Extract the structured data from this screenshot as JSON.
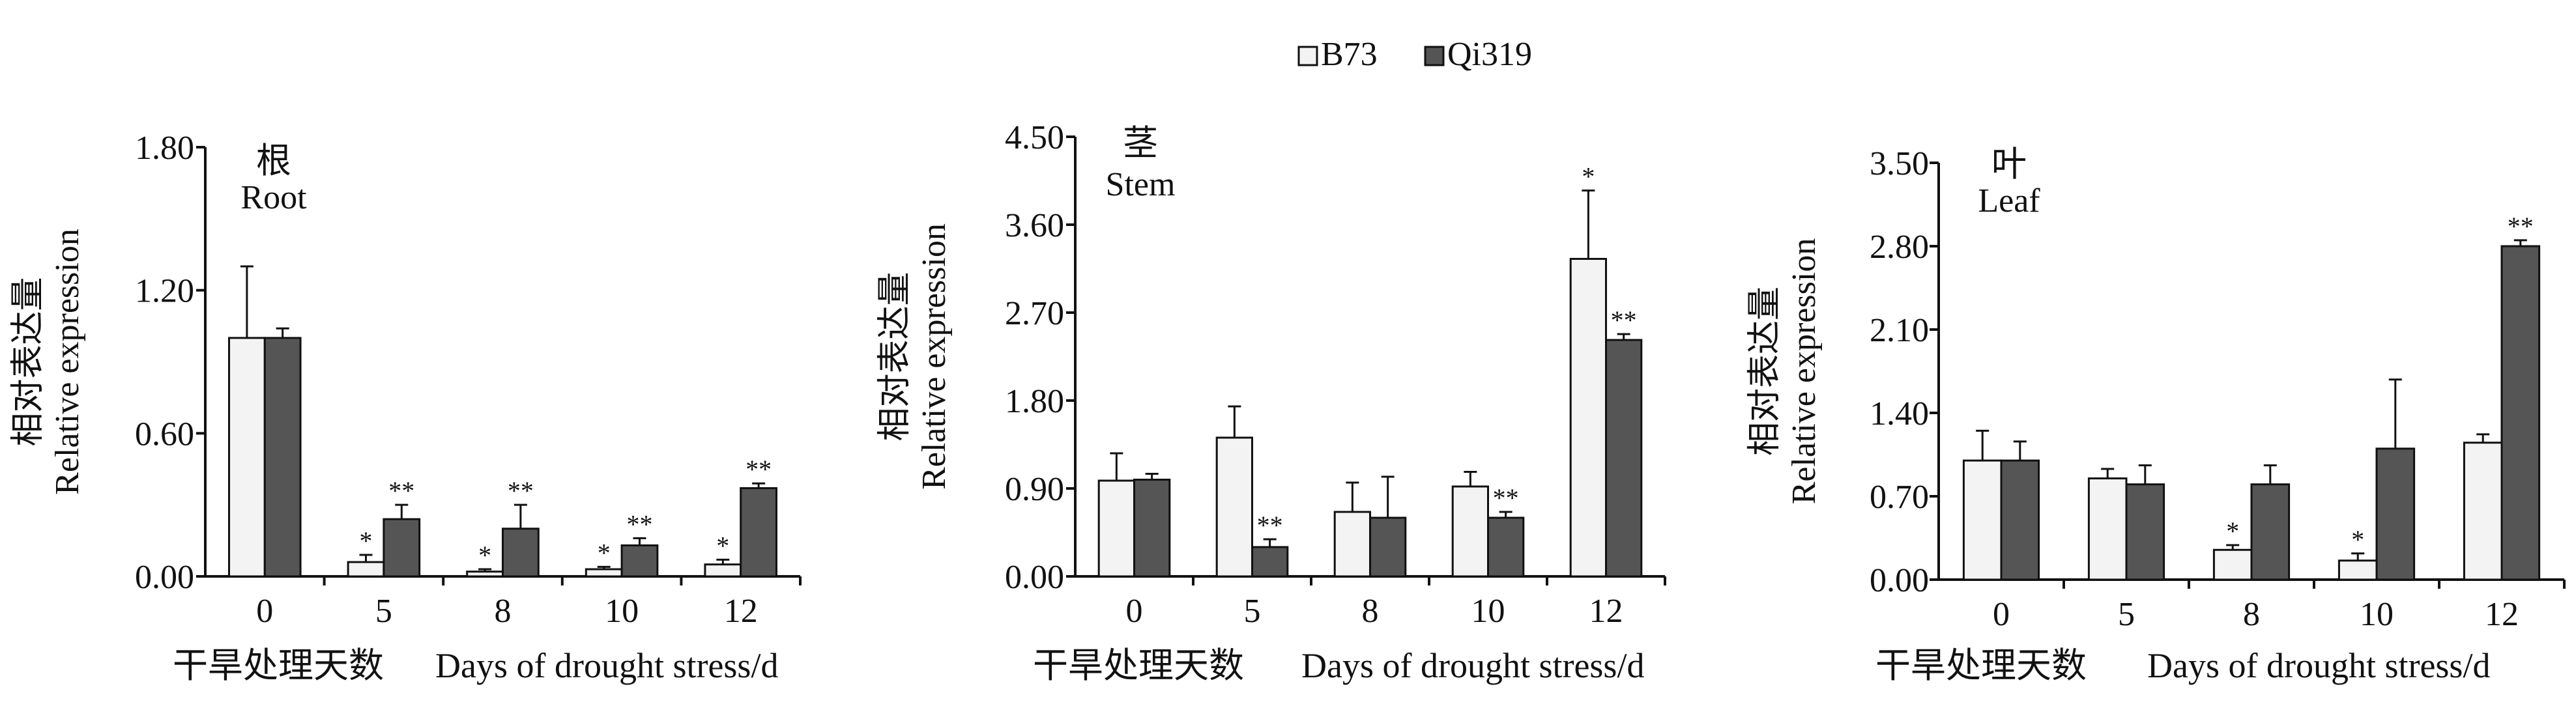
{
  "legend": {
    "items": [
      {
        "label": "B73",
        "color": "#f3f3f3"
      },
      {
        "label": "Qi319",
        "color": "#555555"
      }
    ]
  },
  "colors": {
    "b73": "#f3f3f3",
    "qi319": "#555555",
    "axis": "#111111"
  },
  "chart_data": [
    {
      "type": "bar",
      "title_cn": "根",
      "title_en": "Root",
      "ylabel_cn": "相对表达量",
      "ylabel_en": "Relative expression",
      "xlabel_cn": "干旱处理天数",
      "xlabel_en": "Days of drought stress/d",
      "categories": [
        "0",
        "5",
        "8",
        "10",
        "12"
      ],
      "ylim": [
        0,
        1.8
      ],
      "yticks": [
        "0.00",
        "0.60",
        "1.20",
        "1.80"
      ],
      "series": [
        {
          "name": "B73",
          "values": [
            1.0,
            0.06,
            0.02,
            0.03,
            0.05
          ],
          "errors": [
            0.3,
            0.03,
            0.01,
            0.01,
            0.02
          ],
          "sig": [
            "",
            "*",
            "*",
            "*",
            "*"
          ]
        },
        {
          "name": "Qi319",
          "values": [
            1.0,
            0.24,
            0.2,
            0.13,
            0.37
          ],
          "errors": [
            0.04,
            0.06,
            0.1,
            0.03,
            0.02
          ],
          "sig": [
            "",
            "**",
            "**",
            "**",
            "**"
          ]
        }
      ]
    },
    {
      "type": "bar",
      "title_cn": "茎",
      "title_en": "Stem",
      "ylabel_cn": "相对表达量",
      "ylabel_en": "Relative expression",
      "xlabel_cn": "干旱处理天数",
      "xlabel_en": "Days of drought stress/d",
      "categories": [
        "0",
        "5",
        "8",
        "10",
        "12"
      ],
      "ylim": [
        0,
        4.5
      ],
      "yticks": [
        "0.00",
        "0.90",
        "1.80",
        "2.70",
        "3.60",
        "4.50"
      ],
      "series": [
        {
          "name": "B73",
          "values": [
            0.98,
            1.42,
            0.66,
            0.92,
            3.25
          ],
          "errors": [
            0.28,
            0.32,
            0.3,
            0.15,
            0.7
          ],
          "sig": [
            "",
            "",
            "",
            "",
            "*"
          ]
        },
        {
          "name": "Qi319",
          "values": [
            0.99,
            0.3,
            0.6,
            0.6,
            2.42
          ],
          "errors": [
            0.06,
            0.08,
            0.42,
            0.06,
            0.06
          ],
          "sig": [
            "",
            "**",
            "",
            "**",
            "**"
          ]
        }
      ]
    },
    {
      "type": "bar",
      "title_cn": "叶",
      "title_en": "Leaf",
      "ylabel_cn": "相对表达量",
      "ylabel_en": "Relative expression",
      "xlabel_cn": "干旱处理天数",
      "xlabel_en": "Days of drought stress/d",
      "categories": [
        "0",
        "5",
        "8",
        "10",
        "12"
      ],
      "ylim": [
        0,
        3.5
      ],
      "yticks": [
        "0.00",
        "0.70",
        "1.40",
        "2.10",
        "2.80",
        "3.50"
      ],
      "series": [
        {
          "name": "B73",
          "values": [
            1.0,
            0.85,
            0.25,
            0.16,
            1.15
          ],
          "errors": [
            0.25,
            0.08,
            0.04,
            0.06,
            0.07
          ],
          "sig": [
            "",
            "",
            "*",
            "*",
            ""
          ]
        },
        {
          "name": "Qi319",
          "values": [
            1.0,
            0.8,
            0.8,
            1.1,
            2.8
          ],
          "errors": [
            0.16,
            0.16,
            0.16,
            0.58,
            0.05
          ],
          "sig": [
            "",
            "",
            "",
            "",
            "**"
          ]
        }
      ]
    }
  ]
}
